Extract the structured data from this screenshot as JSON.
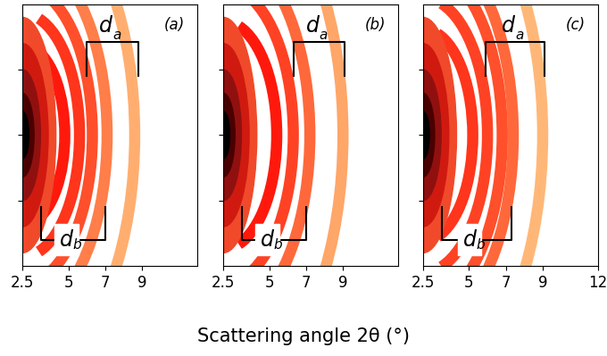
{
  "figure": {
    "xlabel": "Scattering angle 2θ (°)"
  },
  "chart_data": [
    {
      "type": "diffraction",
      "panel_label": "(a)",
      "xlim": [
        2.5,
        12
      ],
      "xticks": [
        2.5,
        5,
        7,
        9
      ],
      "ylim": [
        -1,
        1
      ],
      "yticks": [
        -0.5,
        0,
        0.5
      ],
      "tick_labels": "x",
      "peaks": {
        "x": [
          4.8,
          5.6,
          6.3,
          7.1,
          8.6
        ],
        "values": [
          1.0,
          0.9,
          0.8,
          0.6,
          0.35
        ]
      },
      "annotations": [
        {
          "text": "d",
          "subscript": "a",
          "range": [
            6.0,
            8.8
          ]
        },
        {
          "text": "d",
          "subscript": "b",
          "range": [
            3.5,
            7.0
          ]
        }
      ]
    },
    {
      "type": "diffraction",
      "panel_label": "(b)",
      "xlim": [
        2.5,
        12
      ],
      "xticks": [
        2.5,
        5,
        7,
        9
      ],
      "ylim": [
        -1,
        1
      ],
      "yticks": [
        -0.5,
        0,
        0.5
      ],
      "tick_labels": "x",
      "peaks": {
        "x": [
          5.4,
          6.3,
          7.2,
          9.0
        ],
        "values": [
          1.0,
          0.85,
          0.7,
          0.4
        ]
      },
      "annotations": [
        {
          "text": "d",
          "subscript": "a",
          "range": [
            6.3,
            9.1
          ]
        },
        {
          "text": "d",
          "subscript": "b",
          "range": [
            3.5,
            7.0
          ]
        }
      ]
    },
    {
      "type": "diffraction",
      "panel_label": "(c)",
      "xlim": [
        2.5,
        12
      ],
      "xticks": [
        2.5,
        5,
        7,
        9,
        12
      ],
      "ylim": [
        -1,
        1
      ],
      "yticks": [
        -0.5,
        0,
        0.5
      ],
      "tick_labels": "x",
      "peaks": {
        "x": [
          5.2,
          6.0,
          6.8,
          7.4,
          9.0
        ],
        "values": [
          0.9,
          0.85,
          0.8,
          0.7,
          0.3
        ]
      },
      "annotations": [
        {
          "text": "d",
          "subscript": "a",
          "range": [
            5.9,
            9.1
          ]
        },
        {
          "text": "d",
          "subscript": "b",
          "range": [
            3.5,
            7.3
          ]
        }
      ]
    }
  ]
}
